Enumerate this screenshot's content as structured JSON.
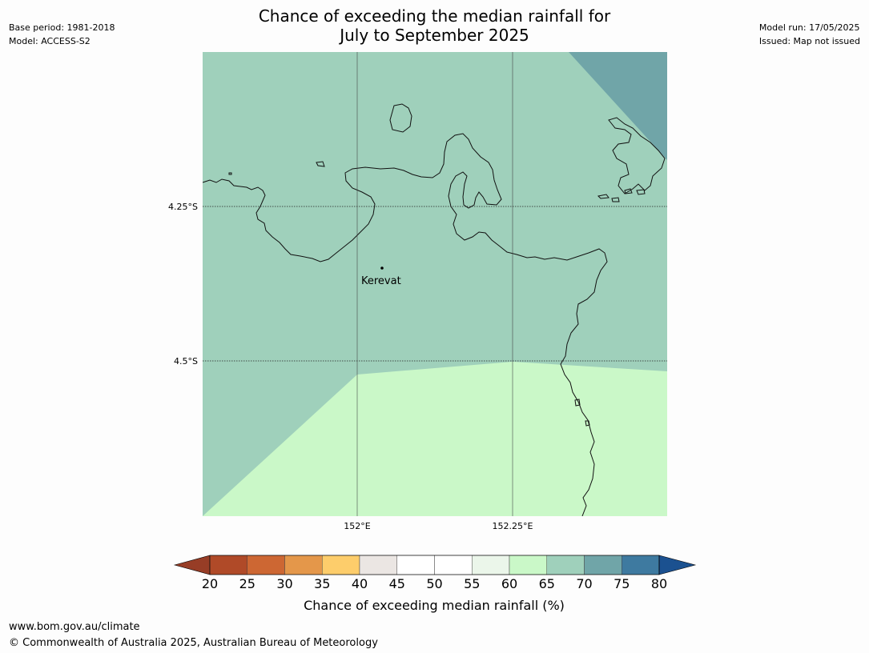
{
  "header": {
    "title_line1": "Chance of exceeding the median rainfall for",
    "title_line2": "July to September 2025",
    "base_period": "Base period: 1981-2018",
    "model": "Model: ACCESS-S2",
    "model_run": "Model run: 17/05/2025",
    "issued": "Issued: Map not issued"
  },
  "map": {
    "lat_labels": [
      "4.25°S",
      "4.5°S"
    ],
    "lon_labels": [
      "152°E",
      "152.25°E"
    ],
    "place_name": "Kerevat",
    "regions": [
      {
        "category": "65-70",
        "color": "#9fd0bb"
      },
      {
        "category": "70-75",
        "color": "#70a5a8"
      },
      {
        "category": "60-65",
        "color": "#caf8c8"
      }
    ]
  },
  "colorbar": {
    "ticks": [
      "20",
      "25",
      "30",
      "35",
      "40",
      "45",
      "50",
      "55",
      "60",
      "65",
      "70",
      "75",
      "80"
    ],
    "colors": [
      "#b04a28",
      "#cd6733",
      "#e4974a",
      "#fdcd6b",
      "#ebe6e3",
      "#ffffff",
      "#ffffff",
      "#ebf6ea",
      "#caf8c8",
      "#9fd0bb",
      "#70a5a8",
      "#3e7aa0"
    ],
    "under_color": "#973d26",
    "over_color": "#1b5190",
    "label": "Chance of exceeding median rainfall (%)"
  },
  "footer": {
    "website": "www.bom.gov.au/climate",
    "copyright": "© Commonwealth of Australia 2025, Australian Bureau of Meteorology"
  }
}
